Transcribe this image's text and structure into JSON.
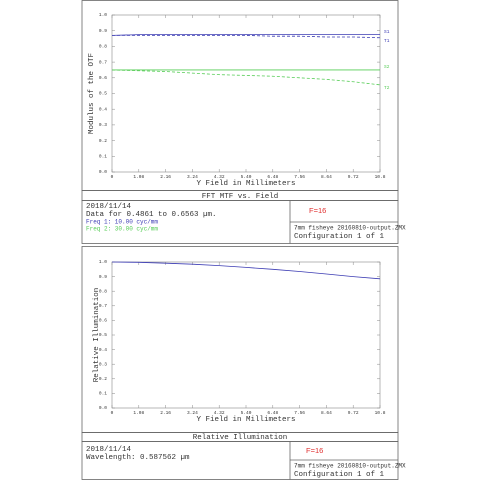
{
  "chart_data": [
    {
      "type": "line",
      "title": "FFT MTF vs. Field",
      "x_label": "Y Field in Millimeters",
      "y_label": "Modulus of the OTF",
      "x": [
        0,
        1.08,
        2.16,
        3.24,
        4.32,
        5.4,
        6.48,
        7.56,
        8.64,
        9.72,
        10.8
      ],
      "xlim": [
        0,
        10.8
      ],
      "xticks": [
        0,
        1.08,
        2.16,
        3.24,
        4.32,
        {
          "value": 5.4,
          "label": "5.40"
        },
        6.48,
        7.56,
        8.64,
        9.72,
        10.8
      ],
      "ylim": [
        0,
        1
      ],
      "yticks": [
        {
          "value": 0,
          "label": "0.0"
        },
        0.1,
        0.2,
        0.3,
        0.4,
        0.5,
        0.6,
        0.7,
        0.8,
        0.9,
        {
          "value": 1,
          "label": "1.0"
        }
      ],
      "grid": false,
      "series": [
        {
          "name": "S1",
          "color": "#3b3bb3",
          "dashed": false,
          "values": [
            0.87,
            0.875,
            0.875,
            0.875,
            0.875,
            0.875,
            0.875,
            0.875,
            0.875,
            0.875,
            0.875
          ]
        },
        {
          "name": "T1",
          "color": "#3b3bb3",
          "dashed": true,
          "values": [
            0.87,
            0.87,
            0.87,
            0.87,
            0.87,
            0.87,
            0.865,
            0.865,
            0.86,
            0.86,
            0.855
          ]
        },
        {
          "name": "S2",
          "color": "#55cc55",
          "dashed": false,
          "values": [
            0.65,
            0.65,
            0.65,
            0.65,
            0.65,
            0.65,
            0.65,
            0.65,
            0.65,
            0.65,
            0.65
          ]
        },
        {
          "name": "T2",
          "color": "#55cc55",
          "dashed": true,
          "values": [
            0.65,
            0.645,
            0.64,
            0.63,
            0.62,
            0.615,
            0.61,
            0.6,
            0.59,
            0.575,
            0.555
          ]
        }
      ],
      "info": {
        "date": "2018/11/14",
        "lines": [
          "Data for 0.4861 to 0.6563 µm.",
          "Freq 1:   10.00 cyc/mm",
          "Freq 2:   30.00 cyc/mm"
        ],
        "fnumber": "F=16",
        "file": "7mm fisheye 20160810-output.ZMX",
        "config": "Configuration 1 of 1"
      }
    },
    {
      "type": "line",
      "title": "Relative Illumination",
      "x_label": "Y Field in Millimeters",
      "y_label": "Relative Illumination",
      "x": [
        0,
        1.08,
        2.16,
        3.24,
        4.32,
        5.4,
        6.48,
        7.56,
        8.64,
        9.72,
        10.8
      ],
      "xlim": [
        0,
        10.8
      ],
      "xticks": [
        0,
        1.08,
        2.16,
        3.24,
        4.32,
        {
          "value": 5.4,
          "label": "5.40"
        },
        6.48,
        7.56,
        8.64,
        9.72,
        10.8
      ],
      "ylim": [
        0,
        1
      ],
      "yticks": [
        {
          "value": 0,
          "label": "0.0"
        },
        0.1,
        0.2,
        0.3,
        0.4,
        0.5,
        0.6,
        0.7,
        0.8,
        0.9,
        {
          "value": 1,
          "label": "1.0"
        }
      ],
      "grid": false,
      "series": [
        {
          "color": "#3b3bb3",
          "dashed": false,
          "values": [
            1.0,
            0.998,
            0.992,
            0.985,
            0.975,
            0.963,
            0.95,
            0.935,
            0.918,
            0.9,
            0.885
          ]
        }
      ],
      "info": {
        "date": "2018/11/14",
        "lines": [
          "Wavelength: 0.587562 µm"
        ],
        "fnumber": "F=16",
        "file": "7mm fisheye 20160810-output.ZMX",
        "config": "Configuration 1 of 1"
      }
    }
  ]
}
